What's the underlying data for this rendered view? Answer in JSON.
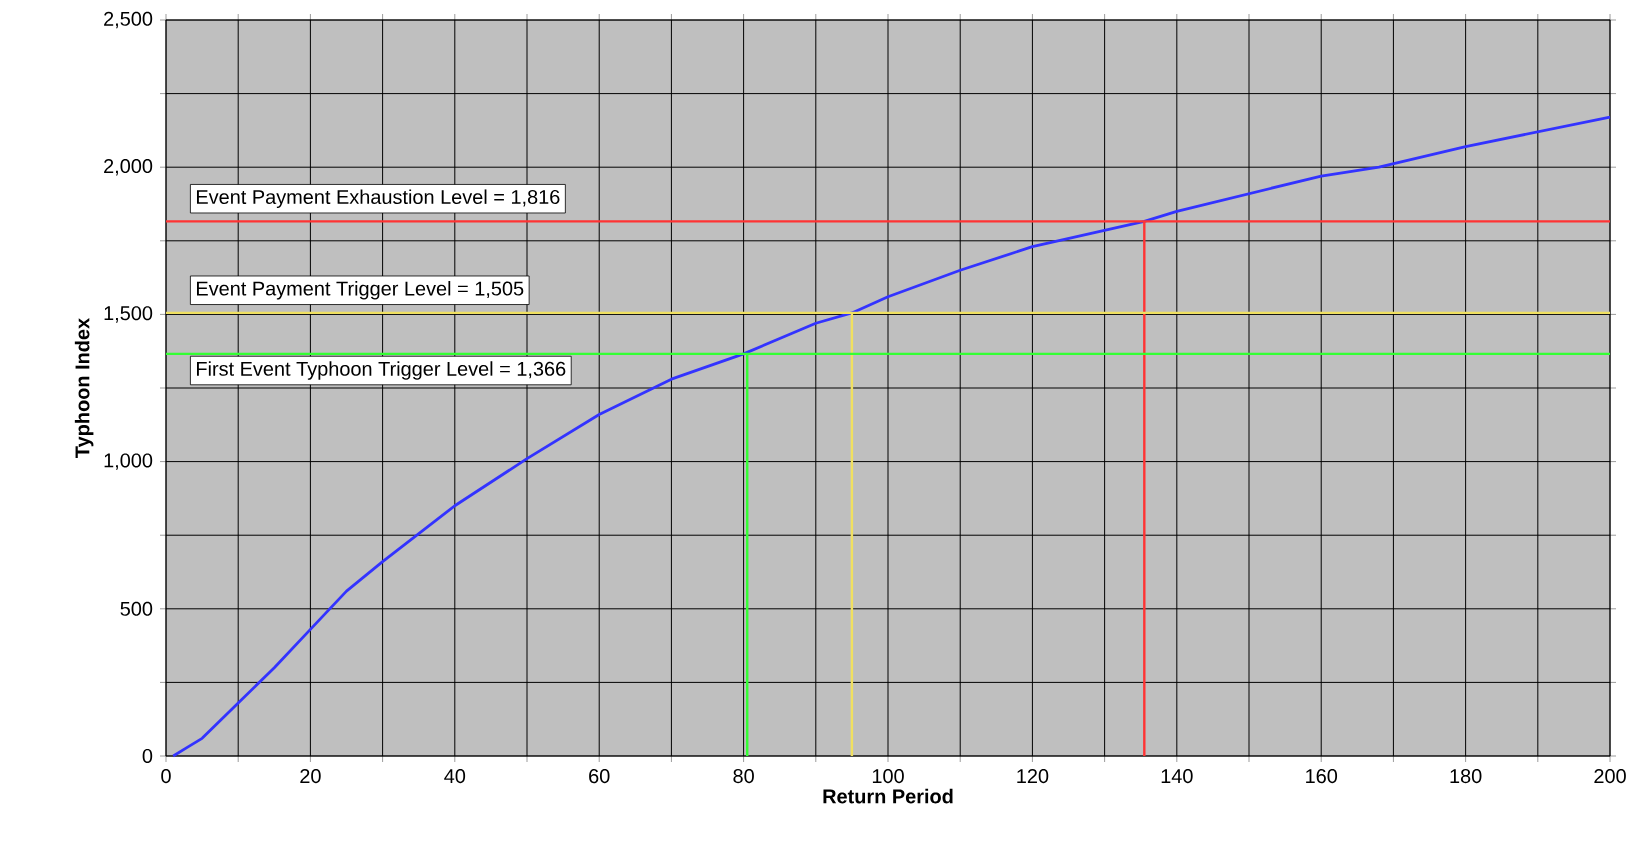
{
  "chart_data": {
    "type": "line",
    "xlabel": "Return Period",
    "ylabel": "Typhoon Index",
    "xlim": [
      0,
      200
    ],
    "ylim": [
      0,
      2500
    ],
    "xticks": [
      0,
      {
        "value": 10,
        "label": null
      },
      20,
      {
        "value": 30,
        "label": null
      },
      40,
      {
        "value": 50,
        "label": null
      },
      60,
      {
        "value": 70,
        "label": null
      },
      80,
      {
        "value": 90,
        "label": null
      },
      100,
      {
        "value": 110,
        "label": null
      },
      120,
      {
        "value": 130,
        "label": null
      },
      140,
      {
        "value": 150,
        "label": null
      },
      160,
      {
        "value": 170,
        "label": null
      },
      180,
      {
        "value": 190,
        "label": null
      },
      200
    ],
    "yticks": [
      0,
      {
        "value": 250,
        "label": null
      },
      500,
      {
        "value": 750,
        "label": null
      },
      {
        "value": 1000,
        "label": "1,000"
      },
      {
        "value": 1250,
        "label": null
      },
      {
        "value": 1500,
        "label": "1,500"
      },
      {
        "value": 1750,
        "label": null
      },
      {
        "value": 2000,
        "label": "2,000"
      },
      {
        "value": 2250,
        "label": null
      },
      {
        "value": 2500,
        "label": "2,500"
      }
    ],
    "grid": true,
    "marker": "none",
    "line_style": "solid",
    "series": [
      {
        "color": "#3333ff",
        "x": [
          1,
          3,
          5,
          10,
          15,
          20,
          25,
          30,
          40,
          50,
          60,
          70,
          80,
          90,
          95,
          100,
          110,
          120,
          135.5,
          140,
          160,
          168,
          180,
          200
        ],
        "values": [
          0,
          30,
          60,
          180,
          300,
          430,
          560,
          660,
          850,
          1010,
          1160,
          1280,
          1366,
          1470,
          1505,
          1560,
          1650,
          1730,
          1816,
          1850,
          1970,
          2000,
          2070,
          2170
        ]
      },
      {
        "color": "#33ff33",
        "x": [
          80.5,
          80.5
        ],
        "values": [
          0,
          1366
        ]
      },
      {
        "color": "#f0e060",
        "x": [
          95,
          95
        ],
        "values": [
          0,
          1505
        ]
      },
      {
        "color": "#ff3333",
        "x": [
          135.5,
          135.5
        ],
        "values": [
          0,
          1816
        ]
      }
    ],
    "ref_lines": [
      {
        "axis": "y",
        "value": 1816,
        "label": "Event Payment Exhaustion Level = 1,816",
        "color": "#ff3333"
      },
      {
        "axis": "y",
        "value": 1505,
        "label": "Event Payment Trigger Level = 1,505",
        "color": "#f0e060"
      },
      {
        "axis": "y",
        "value": 1366,
        "label": "First Event Typhoon Trigger Level = 1,366",
        "color": "#33ff33"
      }
    ]
  }
}
